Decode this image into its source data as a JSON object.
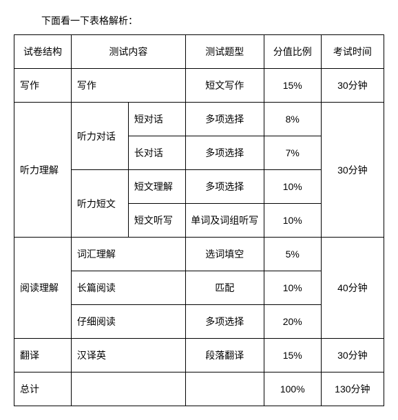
{
  "intro": "下面看一下表格解析：",
  "headers": {
    "structure": "试卷结构",
    "content": "测试内容",
    "type": "测试题型",
    "score": "分值比例",
    "time": "考试时间"
  },
  "rows": {
    "writing": {
      "structure": "写作",
      "content": "写作",
      "type": "短文写作",
      "score": "15%",
      "time": "30分钟"
    },
    "listening": {
      "structure": "听力理解",
      "dialog": {
        "label": "听力对话",
        "short": {
          "label": "短对话",
          "type": "多项选择",
          "score": "8%"
        },
        "long": {
          "label": "长对话",
          "type": "多项选择",
          "score": "7%"
        }
      },
      "passage": {
        "label": "听力短文",
        "comp": {
          "label": "短文理解",
          "type": "多项选择",
          "score": "10%"
        },
        "dict": {
          "label": "短文听写",
          "type": "单词及词组听写",
          "score": "10%"
        }
      },
      "time": "30分钟"
    },
    "reading": {
      "structure": "阅读理解",
      "vocab": {
        "label": "词汇理解",
        "type": "选词填空",
        "score": "5%"
      },
      "long": {
        "label": "长篇阅读",
        "type": "匹配",
        "score": "10%"
      },
      "careful": {
        "label": "仔细阅读",
        "type": "多项选择",
        "score": "20%"
      },
      "time": "40分钟"
    },
    "translation": {
      "structure": "翻译",
      "content": "汉译英",
      "type": "段落翻译",
      "score": "15%",
      "time": "30分钟"
    },
    "total": {
      "structure": "总计",
      "score": "100%",
      "time": "130分钟"
    }
  }
}
